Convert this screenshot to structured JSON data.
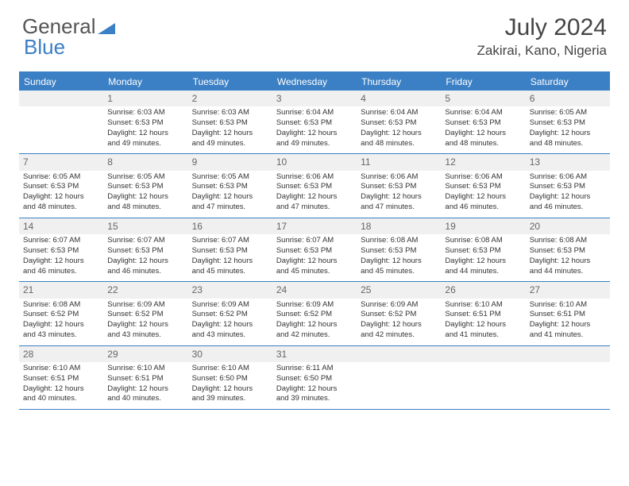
{
  "logo": {
    "text1": "General",
    "text2": "Blue"
  },
  "title": "July 2024",
  "location": "Zakirai, Kano, Nigeria",
  "colors": {
    "accent": "#3b7fc4",
    "header_bg": "#3b7fc4",
    "header_text": "#ffffff",
    "daynum_bg": "#f0f0f0",
    "border": "#3b7fc4",
    "text": "#333333"
  },
  "weekdays": [
    "Sunday",
    "Monday",
    "Tuesday",
    "Wednesday",
    "Thursday",
    "Friday",
    "Saturday"
  ],
  "weeks": [
    [
      {
        "blank": true
      },
      {
        "n": "1",
        "sr": "Sunrise: 6:03 AM",
        "ss": "Sunset: 6:53 PM",
        "d1": "Daylight: 12 hours",
        "d2": "and 49 minutes."
      },
      {
        "n": "2",
        "sr": "Sunrise: 6:03 AM",
        "ss": "Sunset: 6:53 PM",
        "d1": "Daylight: 12 hours",
        "d2": "and 49 minutes."
      },
      {
        "n": "3",
        "sr": "Sunrise: 6:04 AM",
        "ss": "Sunset: 6:53 PM",
        "d1": "Daylight: 12 hours",
        "d2": "and 49 minutes."
      },
      {
        "n": "4",
        "sr": "Sunrise: 6:04 AM",
        "ss": "Sunset: 6:53 PM",
        "d1": "Daylight: 12 hours",
        "d2": "and 48 minutes."
      },
      {
        "n": "5",
        "sr": "Sunrise: 6:04 AM",
        "ss": "Sunset: 6:53 PM",
        "d1": "Daylight: 12 hours",
        "d2": "and 48 minutes."
      },
      {
        "n": "6",
        "sr": "Sunrise: 6:05 AM",
        "ss": "Sunset: 6:53 PM",
        "d1": "Daylight: 12 hours",
        "d2": "and 48 minutes."
      }
    ],
    [
      {
        "n": "7",
        "sr": "Sunrise: 6:05 AM",
        "ss": "Sunset: 6:53 PM",
        "d1": "Daylight: 12 hours",
        "d2": "and 48 minutes."
      },
      {
        "n": "8",
        "sr": "Sunrise: 6:05 AM",
        "ss": "Sunset: 6:53 PM",
        "d1": "Daylight: 12 hours",
        "d2": "and 48 minutes."
      },
      {
        "n": "9",
        "sr": "Sunrise: 6:05 AM",
        "ss": "Sunset: 6:53 PM",
        "d1": "Daylight: 12 hours",
        "d2": "and 47 minutes."
      },
      {
        "n": "10",
        "sr": "Sunrise: 6:06 AM",
        "ss": "Sunset: 6:53 PM",
        "d1": "Daylight: 12 hours",
        "d2": "and 47 minutes."
      },
      {
        "n": "11",
        "sr": "Sunrise: 6:06 AM",
        "ss": "Sunset: 6:53 PM",
        "d1": "Daylight: 12 hours",
        "d2": "and 47 minutes."
      },
      {
        "n": "12",
        "sr": "Sunrise: 6:06 AM",
        "ss": "Sunset: 6:53 PM",
        "d1": "Daylight: 12 hours",
        "d2": "and 46 minutes."
      },
      {
        "n": "13",
        "sr": "Sunrise: 6:06 AM",
        "ss": "Sunset: 6:53 PM",
        "d1": "Daylight: 12 hours",
        "d2": "and 46 minutes."
      }
    ],
    [
      {
        "n": "14",
        "sr": "Sunrise: 6:07 AM",
        "ss": "Sunset: 6:53 PM",
        "d1": "Daylight: 12 hours",
        "d2": "and 46 minutes."
      },
      {
        "n": "15",
        "sr": "Sunrise: 6:07 AM",
        "ss": "Sunset: 6:53 PM",
        "d1": "Daylight: 12 hours",
        "d2": "and 46 minutes."
      },
      {
        "n": "16",
        "sr": "Sunrise: 6:07 AM",
        "ss": "Sunset: 6:53 PM",
        "d1": "Daylight: 12 hours",
        "d2": "and 45 minutes."
      },
      {
        "n": "17",
        "sr": "Sunrise: 6:07 AM",
        "ss": "Sunset: 6:53 PM",
        "d1": "Daylight: 12 hours",
        "d2": "and 45 minutes."
      },
      {
        "n": "18",
        "sr": "Sunrise: 6:08 AM",
        "ss": "Sunset: 6:53 PM",
        "d1": "Daylight: 12 hours",
        "d2": "and 45 minutes."
      },
      {
        "n": "19",
        "sr": "Sunrise: 6:08 AM",
        "ss": "Sunset: 6:53 PM",
        "d1": "Daylight: 12 hours",
        "d2": "and 44 minutes."
      },
      {
        "n": "20",
        "sr": "Sunrise: 6:08 AM",
        "ss": "Sunset: 6:53 PM",
        "d1": "Daylight: 12 hours",
        "d2": "and 44 minutes."
      }
    ],
    [
      {
        "n": "21",
        "sr": "Sunrise: 6:08 AM",
        "ss": "Sunset: 6:52 PM",
        "d1": "Daylight: 12 hours",
        "d2": "and 43 minutes."
      },
      {
        "n": "22",
        "sr": "Sunrise: 6:09 AM",
        "ss": "Sunset: 6:52 PM",
        "d1": "Daylight: 12 hours",
        "d2": "and 43 minutes."
      },
      {
        "n": "23",
        "sr": "Sunrise: 6:09 AM",
        "ss": "Sunset: 6:52 PM",
        "d1": "Daylight: 12 hours",
        "d2": "and 43 minutes."
      },
      {
        "n": "24",
        "sr": "Sunrise: 6:09 AM",
        "ss": "Sunset: 6:52 PM",
        "d1": "Daylight: 12 hours",
        "d2": "and 42 minutes."
      },
      {
        "n": "25",
        "sr": "Sunrise: 6:09 AM",
        "ss": "Sunset: 6:52 PM",
        "d1": "Daylight: 12 hours",
        "d2": "and 42 minutes."
      },
      {
        "n": "26",
        "sr": "Sunrise: 6:10 AM",
        "ss": "Sunset: 6:51 PM",
        "d1": "Daylight: 12 hours",
        "d2": "and 41 minutes."
      },
      {
        "n": "27",
        "sr": "Sunrise: 6:10 AM",
        "ss": "Sunset: 6:51 PM",
        "d1": "Daylight: 12 hours",
        "d2": "and 41 minutes."
      }
    ],
    [
      {
        "n": "28",
        "sr": "Sunrise: 6:10 AM",
        "ss": "Sunset: 6:51 PM",
        "d1": "Daylight: 12 hours",
        "d2": "and 40 minutes."
      },
      {
        "n": "29",
        "sr": "Sunrise: 6:10 AM",
        "ss": "Sunset: 6:51 PM",
        "d1": "Daylight: 12 hours",
        "d2": "and 40 minutes."
      },
      {
        "n": "30",
        "sr": "Sunrise: 6:10 AM",
        "ss": "Sunset: 6:50 PM",
        "d1": "Daylight: 12 hours",
        "d2": "and 39 minutes."
      },
      {
        "n": "31",
        "sr": "Sunrise: 6:11 AM",
        "ss": "Sunset: 6:50 PM",
        "d1": "Daylight: 12 hours",
        "d2": "and 39 minutes."
      },
      {
        "blank": true
      },
      {
        "blank": true
      },
      {
        "blank": true
      }
    ]
  ]
}
